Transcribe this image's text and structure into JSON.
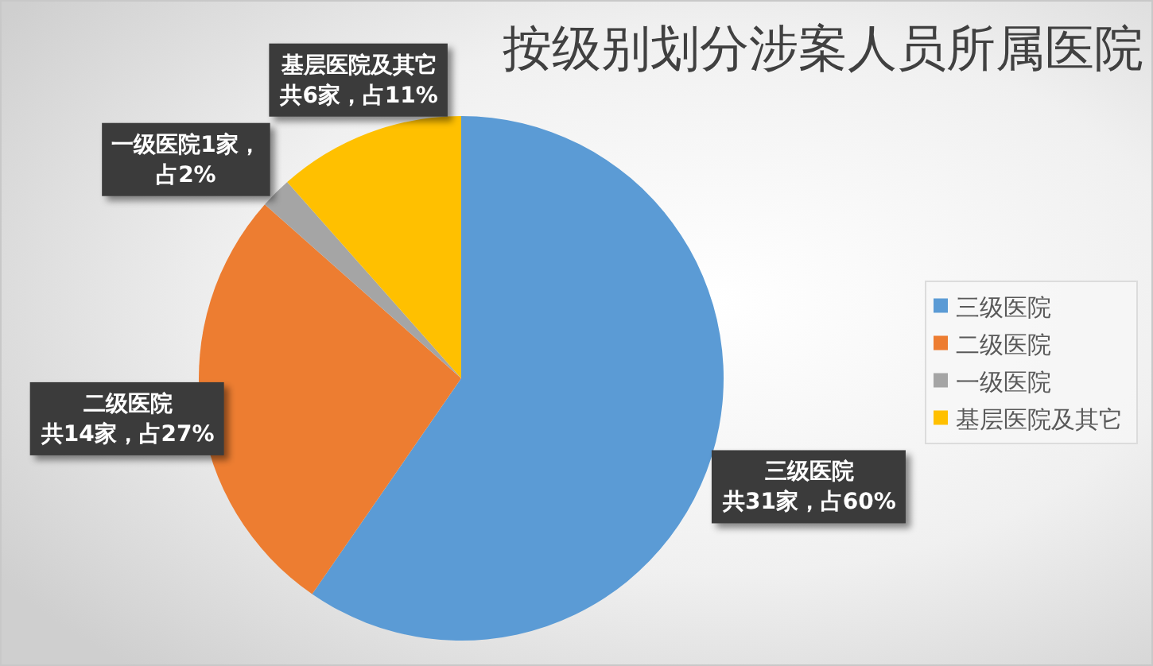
{
  "chart_data": {
    "type": "pie",
    "title": "按级别划分涉案人员所属医院",
    "categories": [
      "三级医院",
      "二级医院",
      "一级医院",
      "基层医院及其它"
    ],
    "values": [
      31,
      14,
      1,
      6
    ],
    "colors": [
      "#5b9bd5",
      "#ed7d31",
      "#a5a5a5",
      "#ffc000"
    ],
    "value_labels": [
      "三级医院共31家，占60%",
      "二级医院共14家，占27%",
      "一级医院1家，占2%",
      "基层医院及其它共6家，占11%"
    ],
    "legend": "right"
  }
}
